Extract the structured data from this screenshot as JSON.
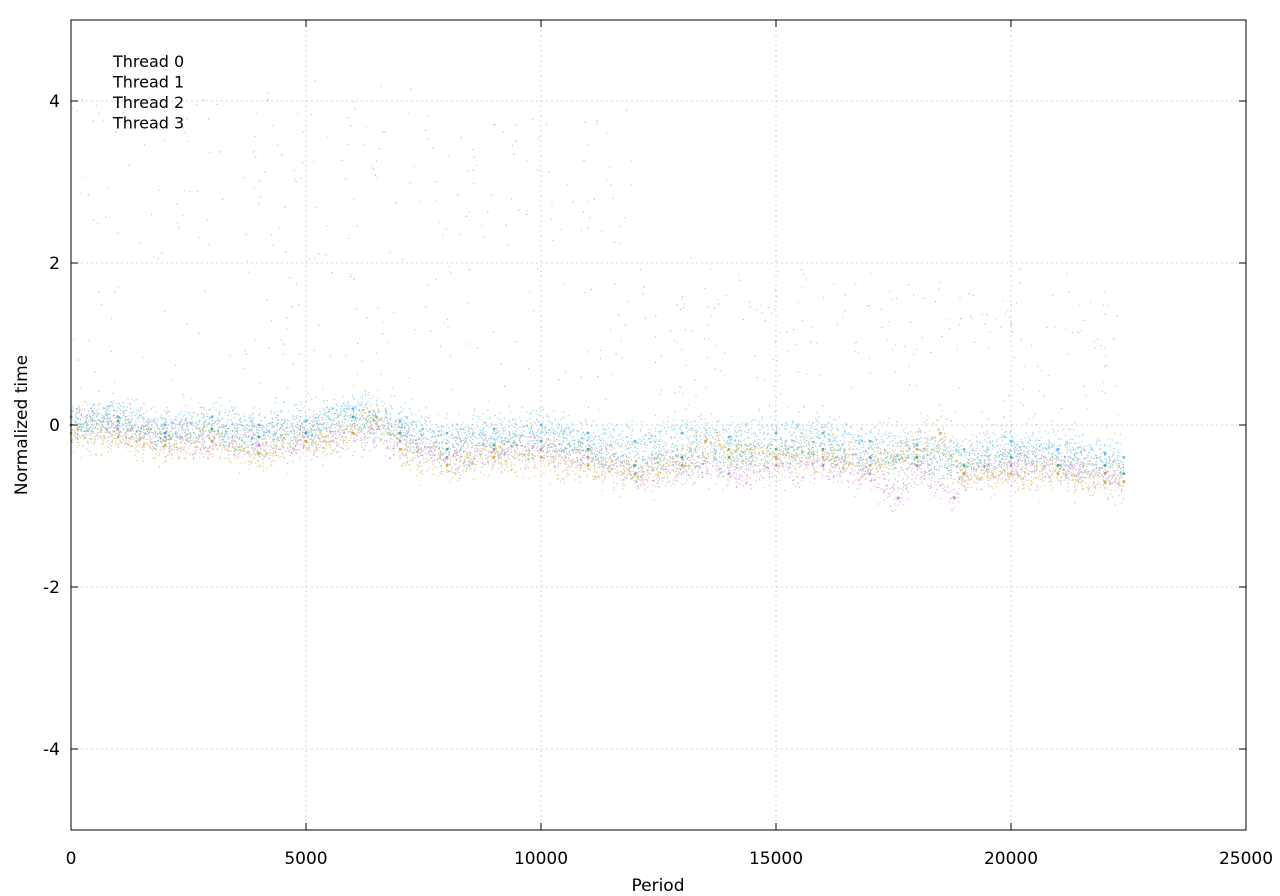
{
  "chart_data": {
    "type": "scatter",
    "title": "",
    "xlabel": "Period",
    "ylabel": "Normalized time",
    "xlim": [
      0,
      25000
    ],
    "ylim": [
      -5,
      5
    ],
    "xticks": [
      0,
      5000,
      10000,
      15000,
      20000,
      25000
    ],
    "yticks": [
      -4,
      -2,
      0,
      2,
      4
    ],
    "grid": true,
    "legend": {
      "placement": "top-left",
      "show_markers": false
    },
    "series": [
      {
        "name": "Thread 0",
        "color": "#c77fd6",
        "x": [
          0,
          1000,
          2000,
          3000,
          4000,
          5000,
          6000,
          7000,
          8000,
          9000,
          10000,
          11000,
          12000,
          13000,
          14000,
          15000,
          16000,
          17000,
          17600,
          18000,
          18800,
          19000,
          20000,
          21000,
          22000,
          22400
        ],
        "y": [
          0.0,
          -0.05,
          -0.15,
          -0.2,
          -0.25,
          -0.2,
          -0.1,
          -0.2,
          -0.4,
          -0.3,
          -0.3,
          -0.4,
          -0.6,
          -0.5,
          -0.6,
          -0.5,
          -0.5,
          -0.6,
          -0.9,
          -0.5,
          -0.9,
          -0.6,
          -0.5,
          -0.5,
          -0.6,
          -0.7
        ]
      },
      {
        "name": "Thread 1",
        "color": "#3aa38c",
        "x": [
          0,
          1000,
          2000,
          3000,
          4000,
          5000,
          6000,
          7000,
          8000,
          9000,
          10000,
          11000,
          12000,
          13000,
          14000,
          15000,
          16000,
          17000,
          18000,
          19000,
          20000,
          21000,
          22000,
          22400
        ],
        "y": [
          0.0,
          0.05,
          -0.1,
          -0.05,
          -0.15,
          -0.1,
          0.1,
          -0.1,
          -0.3,
          -0.25,
          -0.2,
          -0.3,
          -0.5,
          -0.4,
          -0.4,
          -0.3,
          -0.3,
          -0.4,
          -0.4,
          -0.5,
          -0.4,
          -0.5,
          -0.5,
          -0.6
        ]
      },
      {
        "name": "Thread 2",
        "color": "#56b4e9",
        "x": [
          0,
          1000,
          2000,
          3000,
          4000,
          5000,
          6000,
          7000,
          8000,
          9000,
          10000,
          11000,
          12000,
          13000,
          14000,
          15000,
          16000,
          17000,
          18000,
          19000,
          20000,
          21000,
          22000,
          22400
        ],
        "y": [
          0.1,
          0.1,
          0.0,
          0.1,
          0.0,
          0.05,
          0.2,
          0.05,
          -0.1,
          -0.05,
          0.0,
          -0.1,
          -0.2,
          -0.1,
          -0.15,
          -0.1,
          -0.1,
          -0.2,
          -0.25,
          -0.3,
          -0.2,
          -0.3,
          -0.35,
          -0.4
        ]
      },
      {
        "name": "Thread 3",
        "color": "#d4a63a",
        "x": [
          0,
          1000,
          2000,
          3000,
          4000,
          5000,
          6000,
          6500,
          7000,
          8000,
          9000,
          10000,
          11000,
          12000,
          13000,
          13500,
          14000,
          15000,
          16000,
          17000,
          18000,
          18500,
          19000,
          20000,
          21000,
          22000,
          22400
        ],
        "y": [
          -0.1,
          -0.15,
          -0.25,
          -0.2,
          -0.35,
          -0.2,
          -0.1,
          0.1,
          -0.3,
          -0.5,
          -0.4,
          -0.4,
          -0.5,
          -0.6,
          -0.5,
          -0.2,
          -0.3,
          -0.4,
          -0.4,
          -0.5,
          -0.3,
          -0.1,
          -0.6,
          -0.6,
          -0.6,
          -0.7,
          -0.7
        ]
      }
    ]
  }
}
